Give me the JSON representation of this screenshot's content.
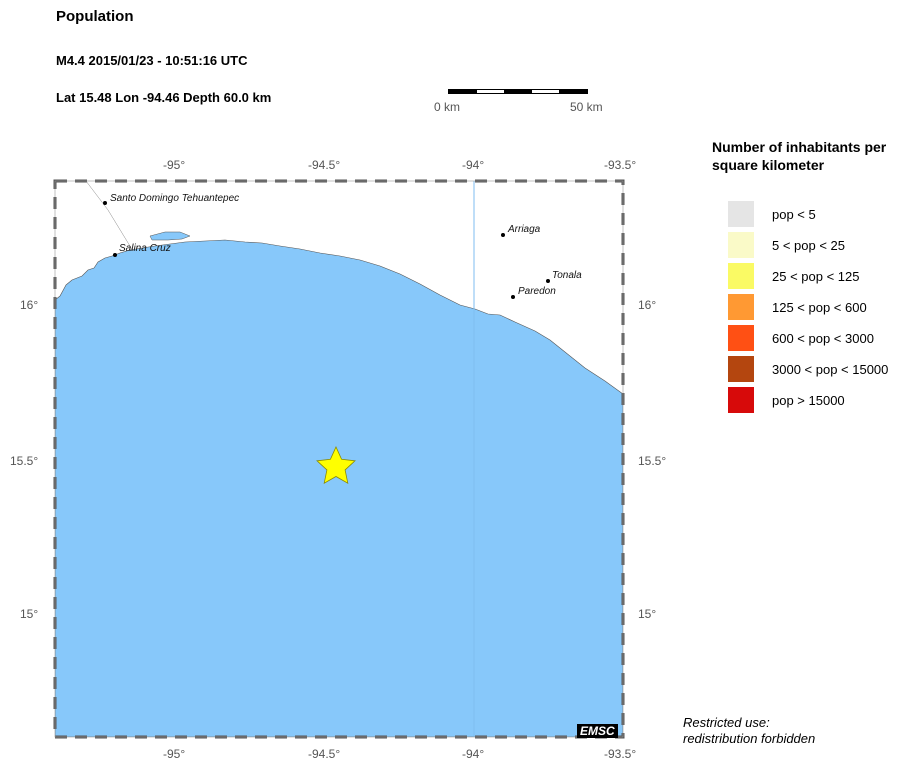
{
  "header": {
    "title": "Population",
    "event": "M4.4  2015/01/23 - 10:51:16 UTC",
    "location": "Lat 15.48    Lon -94.46     Depth  60.0 km"
  },
  "scalebar": {
    "left_label": "0 km",
    "right_label": "50 km"
  },
  "axes": {
    "top": [
      "-95°",
      "-94.5°",
      "-94°",
      "-93.5°"
    ],
    "bottom": [
      "-95°",
      "-94.5°",
      "-94°",
      "-93.5°"
    ],
    "left": [
      "16°",
      "15.5°",
      "15°"
    ],
    "right": [
      "16°",
      "15.5°",
      "15°"
    ]
  },
  "cities": [
    {
      "name": "Santo Domingo Tehuantepec"
    },
    {
      "name": "Salina Cruz"
    },
    {
      "name": "Arriaga"
    },
    {
      "name": "Tonala"
    },
    {
      "name": "Paredon"
    }
  ],
  "epicenter": {
    "lat": 15.48,
    "lon": -94.46,
    "color": "#ffff00"
  },
  "legend": {
    "title": "Number of inhabitants per square kilometer",
    "items": [
      {
        "label": "pop < 5",
        "color": "#e5e5e5"
      },
      {
        "label": "5 < pop < 25",
        "color": "#fafac8"
      },
      {
        "label": "25 < pop < 125",
        "color": "#fafa64"
      },
      {
        "label": "125 < pop < 600",
        "color": "#ff9933"
      },
      {
        "label": "600 < pop < 3000",
        "color": "#ff5014"
      },
      {
        "label": "3000 < pop < 15000",
        "color": "#b4460f"
      },
      {
        "label": "pop > 15000",
        "color": "#d70a0a"
      }
    ]
  },
  "colors": {
    "sea": "#87c8fa",
    "land": "#ffffff"
  },
  "logo": "EMSC",
  "note_line1": "Restricted use:",
  "note_line2": "redistribution forbidden"
}
